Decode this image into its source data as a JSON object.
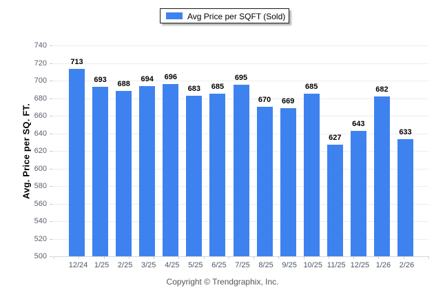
{
  "chart_data": {
    "type": "bar",
    "title": "",
    "legend": "Avg Price per SQFT (Sold)",
    "categories": [
      "12/24",
      "1/25",
      "2/25",
      "3/25",
      "4/25",
      "5/25",
      "6/25",
      "7/25",
      "8/25",
      "9/25",
      "10/25",
      "11/25",
      "12/25",
      "1/26",
      "2/26"
    ],
    "values": [
      713,
      693,
      688,
      694,
      696,
      683,
      685,
      695,
      670,
      669,
      685,
      627,
      643,
      682,
      633
    ],
    "xlabel": "",
    "ylabel": "Avg. Price per SQ. FT.",
    "ylim": [
      500,
      740
    ],
    "ytick_step": 20,
    "yticks": [
      740,
      720,
      700,
      680,
      660,
      640,
      620,
      600,
      580,
      560,
      540,
      520,
      500
    ],
    "grid": true,
    "legend_position": "top-center",
    "bar_color": "#3e82f0"
  },
  "footer": {
    "copyright": "Copyright © Trendgraphix, Inc."
  },
  "colors": {
    "bar": "#3e82f0",
    "gridline": "#ececec",
    "baseline": "#d6d6d6",
    "tick_label": "#58606b",
    "x_label": "#4d5663",
    "value_label": "#000000",
    "background": "#ffffff"
  }
}
